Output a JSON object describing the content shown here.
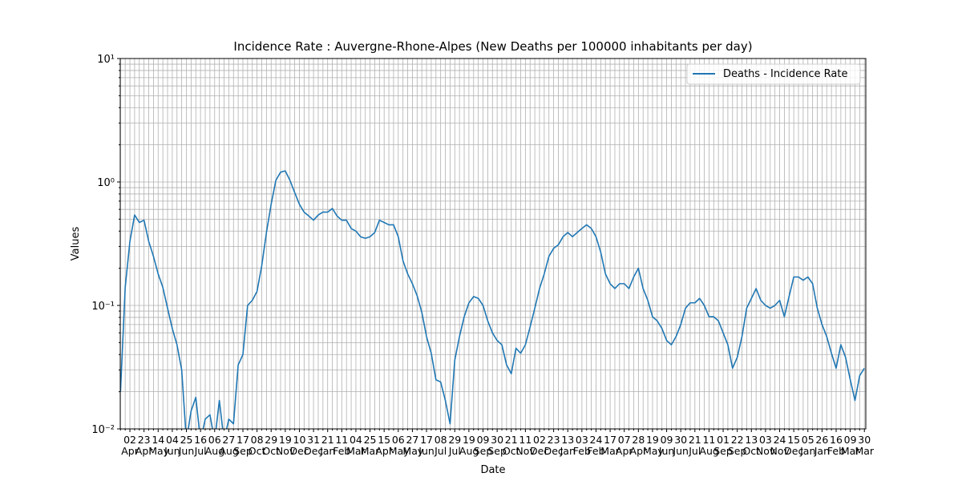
{
  "chart_data": {
    "type": "line",
    "title": "Incidence Rate : Auvergne-Rhone-Alpes  (New Deaths per 100000 inhabitants per day)",
    "x_label": "Date",
    "y_label": "Values",
    "log_y": true,
    "grid": true,
    "legend": "upper right",
    "categories": [
      null,
      null,
      "02 Apr",
      null,
      null,
      "23 Apr",
      null,
      null,
      "14 May",
      null,
      null,
      "04 Jun",
      null,
      null,
      "25 Jun",
      null,
      null,
      "16 Jul",
      null,
      null,
      "06 Aug",
      null,
      null,
      "27 Aug",
      null,
      null,
      "17 Sep",
      null,
      null,
      "08 Oct",
      null,
      null,
      "29 Oct",
      null,
      null,
      "19 Nov",
      null,
      null,
      "10 Dec",
      null,
      null,
      "31 Dec",
      null,
      null,
      "21 Jan",
      null,
      null,
      "11 Feb",
      null,
      null,
      "04 Mar",
      null,
      null,
      "25 Mar",
      null,
      null,
      "15 Apr",
      null,
      null,
      "06 May",
      null,
      null,
      "27 May",
      null,
      null,
      "17 Jun",
      null,
      null,
      "08 Jul",
      null,
      null,
      "29 Jul",
      null,
      null,
      "19 Aug",
      null,
      null,
      "09 Sep",
      null,
      null,
      "30 Sep",
      null,
      null,
      "21 Oct",
      null,
      null,
      "11 Nov",
      null,
      null,
      "02 Dec",
      null,
      null,
      "23 Dec",
      null,
      null,
      "13 Jan",
      null,
      null,
      "03 Feb",
      null,
      null,
      "24 Feb",
      null,
      null,
      "17 Mar",
      null,
      null,
      "07 Apr",
      null,
      null,
      "28 Apr",
      null,
      null,
      "19 May",
      null,
      null,
      "09 Jun",
      null,
      null,
      "30 Jun",
      null,
      null,
      "21 Jul",
      null,
      null,
      "11 Aug",
      null,
      null,
      "01 Sep",
      null,
      null,
      "22 Sep",
      null,
      null,
      "13 Oct",
      null,
      null,
      "03 Nov",
      null,
      null,
      "24 Nov",
      null,
      null,
      "15 Dec",
      null,
      null,
      "05 Jan",
      null,
      null,
      "26 Jan",
      null,
      null,
      "16 Feb",
      null,
      null,
      "09 Mar",
      null,
      null,
      "30 Mar"
    ],
    "series": [
      {
        "name": "Deaths - Incidence Rate",
        "color": "#1f77b4",
        "values": [
          0.02,
          0.14,
          0.33,
          0.54,
          0.47,
          0.49,
          0.33,
          0.25,
          0.18,
          0.14,
          0.095,
          0.065,
          0.048,
          0.03,
          0.008,
          0.014,
          0.018,
          0.008,
          0.012,
          0.013,
          0.008,
          0.017,
          0.008,
          0.012,
          0.011,
          0.033,
          0.04,
          0.1,
          0.11,
          0.13,
          0.21,
          0.39,
          0.66,
          1.03,
          1.2,
          1.23,
          1.03,
          0.82,
          0.66,
          0.57,
          0.53,
          0.49,
          0.54,
          0.57,
          0.57,
          0.61,
          0.53,
          0.49,
          0.49,
          0.42,
          0.4,
          0.36,
          0.35,
          0.36,
          0.39,
          0.49,
          0.47,
          0.45,
          0.45,
          0.36,
          0.23,
          0.18,
          0.15,
          0.12,
          0.088,
          0.056,
          0.041,
          0.025,
          0.024,
          0.017,
          0.011,
          0.036,
          0.056,
          0.081,
          0.105,
          0.118,
          0.114,
          0.1,
          0.075,
          0.06,
          0.052,
          0.048,
          0.033,
          0.028,
          0.045,
          0.041,
          0.048,
          0.067,
          0.095,
          0.137,
          0.18,
          0.25,
          0.29,
          0.31,
          0.36,
          0.39,
          0.36,
          0.39,
          0.42,
          0.45,
          0.42,
          0.36,
          0.27,
          0.18,
          0.15,
          0.137,
          0.15,
          0.15,
          0.137,
          0.17,
          0.2,
          0.137,
          0.11,
          0.081,
          0.075,
          0.065,
          0.052,
          0.048,
          0.056,
          0.07,
          0.095,
          0.105,
          0.105,
          0.114,
          0.1,
          0.081,
          0.081,
          0.075,
          0.06,
          0.048,
          0.031,
          0.038,
          0.056,
          0.095,
          0.114,
          0.137,
          0.11,
          0.1,
          0.095,
          0.1,
          0.11,
          0.081,
          0.118,
          0.17,
          0.17,
          0.16,
          0.17,
          0.15,
          0.095,
          0.07,
          0.056,
          0.041,
          0.031,
          0.048,
          0.038,
          0.025,
          0.017,
          0.027,
          0.031
        ]
      }
    ],
    "ylim": [
      0.01,
      10
    ],
    "yticks": [
      {
        "value": 0.01,
        "label": "10⁻²"
      },
      {
        "value": 0.1,
        "label": "10⁻¹"
      },
      {
        "value": 1,
        "label": "10⁰"
      },
      {
        "value": 10,
        "label": "10¹"
      }
    ],
    "yminorticks": [
      0.02,
      0.03,
      0.04,
      0.05,
      0.06,
      0.07,
      0.08,
      0.09,
      0.2,
      0.3,
      0.4,
      0.5,
      0.6,
      0.7,
      0.8,
      0.9,
      2,
      3,
      4,
      5,
      6,
      7,
      8,
      9
    ]
  }
}
